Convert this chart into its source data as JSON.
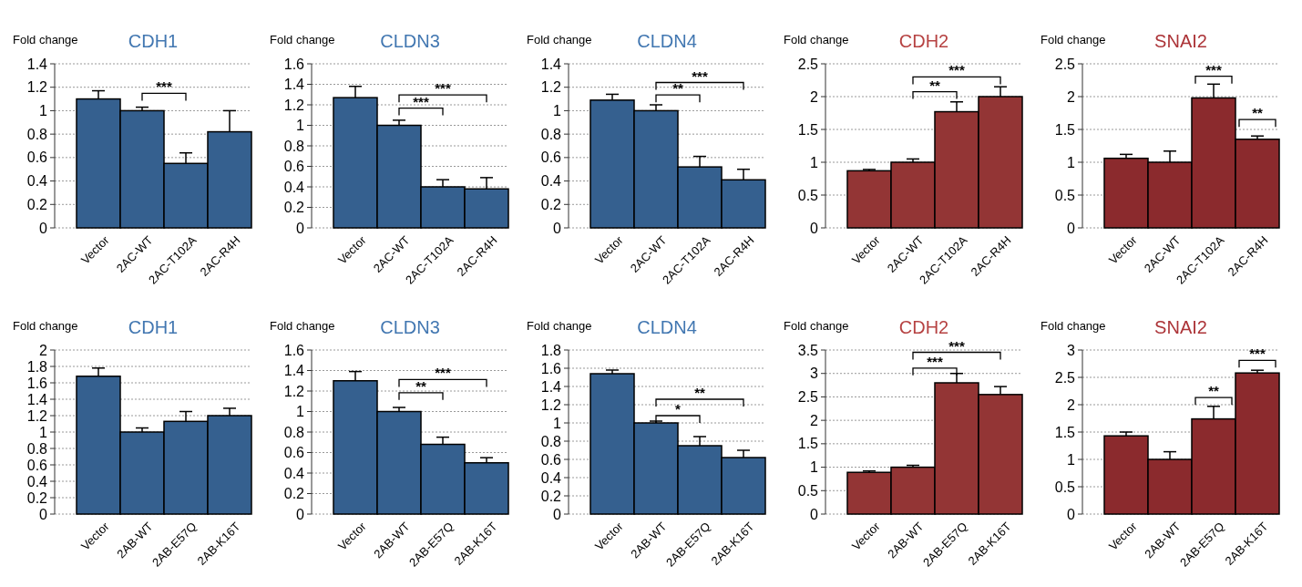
{
  "chart_data": [
    {
      "type": "bar",
      "title": "CDH1",
      "ylabel": "Fold change",
      "categories": [
        "Vector",
        "2AC-WT",
        "2AC-T102A",
        "2AC-R4H"
      ],
      "values": [
        1.1,
        1.0,
        0.55,
        0.82
      ],
      "errors": [
        [
          1.1,
          1.17
        ],
        [
          1.0,
          1.03
        ],
        [
          0.55,
          0.64
        ],
        [
          0.82,
          1.0
        ]
      ],
      "color": "#35608f",
      "ylim": [
        0,
        1.4
      ],
      "yticks": [
        0,
        0.2,
        0.4,
        0.6,
        0.8,
        1,
        1.2,
        1.4
      ],
      "grid": "y",
      "annotations": [
        "***"
      ]
    },
    {
      "type": "bar",
      "title": "CLDN3",
      "ylabel": "Fold change",
      "categories": [
        "Vector",
        "2AC-WT",
        "2AC-T102A",
        "2AC-R4H"
      ],
      "values": [
        1.27,
        1.0,
        0.4,
        0.38
      ],
      "errors": [
        [
          1.27,
          1.38
        ],
        [
          1.0,
          1.05
        ],
        [
          0.4,
          0.47
        ],
        [
          0.38,
          0.49
        ]
      ],
      "color": "#35608f",
      "ylim": [
        0,
        1.6
      ],
      "yticks": [
        0,
        0.2,
        0.4,
        0.6,
        0.8,
        1,
        1.2,
        1.4,
        1.6
      ],
      "grid": "y",
      "annotations": [
        "***",
        "***"
      ]
    },
    {
      "type": "bar",
      "title": "CLDN4",
      "ylabel": "Fold change",
      "categories": [
        "Vector",
        "2AC-WT",
        "2AC-T102A",
        "2AC-R4H"
      ],
      "values": [
        1.09,
        1.0,
        0.52,
        0.41
      ],
      "errors": [
        [
          1.09,
          1.14
        ],
        [
          1.0,
          1.05
        ],
        [
          0.52,
          0.61
        ],
        [
          0.41,
          0.5
        ]
      ],
      "color": "#35608f",
      "ylim": [
        0,
        1.4
      ],
      "yticks": [
        0,
        0.2,
        0.4,
        0.6,
        0.8,
        1,
        1.2,
        1.4
      ],
      "grid": "y",
      "annotations": [
        "**",
        "***"
      ]
    },
    {
      "type": "bar",
      "title": "CDH2",
      "ylabel": "Fold change",
      "categories": [
        "Vector",
        "2AC-WT",
        "2AC-T102A",
        "2AC-R4H"
      ],
      "values": [
        0.87,
        1.0,
        1.77,
        2.0
      ],
      "errors": [
        [
          0.87,
          0.89
        ],
        [
          1.0,
          1.05
        ],
        [
          1.77,
          1.92
        ],
        [
          2.0,
          2.15
        ]
      ],
      "color": "#933535",
      "ylim": [
        0,
        2.5
      ],
      "yticks": [
        0,
        0.5,
        1,
        1.5,
        2,
        2.5
      ],
      "grid": "y",
      "annotations": [
        "**",
        "***"
      ]
    },
    {
      "type": "bar",
      "title": "SNAI2",
      "ylabel": "Fold change",
      "categories": [
        "Vector",
        "2AC-WT",
        "2AC-T102A",
        "2AC-R4H"
      ],
      "values": [
        1.06,
        1.0,
        1.98,
        1.35
      ],
      "errors": [
        [
          1.06,
          1.12
        ],
        [
          1.0,
          1.17
        ],
        [
          1.98,
          2.19
        ],
        [
          1.35,
          1.4
        ]
      ],
      "color": "#8b2a2d",
      "ylim": [
        0,
        2.5
      ],
      "yticks": [
        0,
        0.5,
        1,
        1.5,
        2,
        2.5
      ],
      "grid": "y",
      "annotations": [
        "***",
        "**"
      ]
    },
    {
      "type": "bar",
      "title": "CDH1",
      "ylabel": "Fold change",
      "categories": [
        "Vector",
        "2AB-WT",
        "2AB-E57Q",
        "2AB-K16T"
      ],
      "values": [
        1.68,
        1.0,
        1.13,
        1.2
      ],
      "errors": [
        [
          1.68,
          1.78
        ],
        [
          1.0,
          1.05
        ],
        [
          1.13,
          1.25
        ],
        [
          1.2,
          1.29
        ]
      ],
      "color": "#35608f",
      "ylim": [
        0,
        2
      ],
      "yticks": [
        0,
        0.2,
        0.4,
        0.6,
        0.8,
        1,
        1.2,
        1.4,
        1.6,
        1.8,
        2
      ],
      "grid": "y"
    },
    {
      "type": "bar",
      "title": "CLDN3",
      "ylabel": "Fold change",
      "categories": [
        "Vector",
        "2AB-WT",
        "2AB-E57Q",
        "2AB-K16T"
      ],
      "values": [
        1.3,
        1.0,
        0.68,
        0.5
      ],
      "errors": [
        [
          1.3,
          1.39
        ],
        [
          1.0,
          1.04
        ],
        [
          0.68,
          0.75
        ],
        [
          0.5,
          0.55
        ]
      ],
      "color": "#35608f",
      "ylim": [
        0,
        1.6
      ],
      "yticks": [
        0,
        0.2,
        0.4,
        0.6,
        0.8,
        1,
        1.2,
        1.4,
        1.6
      ],
      "grid": "y",
      "annotations": [
        "**",
        "***"
      ]
    },
    {
      "type": "bar",
      "title": "CLDN4",
      "ylabel": "Fold change",
      "categories": [
        "Vector",
        "2AB-WT",
        "2AB-E57Q",
        "2AB-K16T"
      ],
      "values": [
        1.54,
        1.0,
        0.75,
        0.62
      ],
      "errors": [
        [
          1.54,
          1.58
        ],
        [
          1.0,
          1.02
        ],
        [
          0.75,
          0.85
        ],
        [
          0.62,
          0.7
        ]
      ],
      "color": "#35608f",
      "ylim": [
        0,
        1.8
      ],
      "yticks": [
        0,
        0.2,
        0.4,
        0.6,
        0.8,
        1,
        1.2,
        1.4,
        1.6,
        1.8
      ],
      "grid": "y",
      "annotations": [
        "*",
        "**"
      ]
    },
    {
      "type": "bar",
      "title": "CDH2",
      "ylabel": "Fold change",
      "categories": [
        "Vector",
        "2AB-WT",
        "2AB-E57Q",
        "2AB-K16T"
      ],
      "values": [
        0.89,
        1.0,
        2.8,
        2.55
      ],
      "errors": [
        [
          0.89,
          0.92
        ],
        [
          1.0,
          1.04
        ],
        [
          2.8,
          3.0
        ],
        [
          2.55,
          2.72
        ]
      ],
      "color": "#933535",
      "ylim": [
        0,
        3.5
      ],
      "yticks": [
        0,
        0.5,
        1,
        1.5,
        2,
        2.5,
        3,
        3.5
      ],
      "grid": "y",
      "annotations": [
        "***",
        "***"
      ]
    },
    {
      "type": "bar",
      "title": "SNAI2",
      "ylabel": "Fold change",
      "categories": [
        "Vector",
        "2AB-WT",
        "2AB-E57Q",
        "2AB-K16T"
      ],
      "values": [
        1.43,
        1.0,
        1.74,
        2.58
      ],
      "errors": [
        [
          1.43,
          1.5
        ],
        [
          1.0,
          1.14
        ],
        [
          1.74,
          1.97
        ],
        [
          2.58,
          2.63
        ]
      ],
      "color": "#8b2a2d",
      "ylim": [
        0,
        3
      ],
      "yticks": [
        0,
        0.5,
        1,
        1.5,
        2,
        2.5,
        3
      ],
      "grid": "y",
      "annotations": [
        "**",
        "***"
      ]
    }
  ]
}
